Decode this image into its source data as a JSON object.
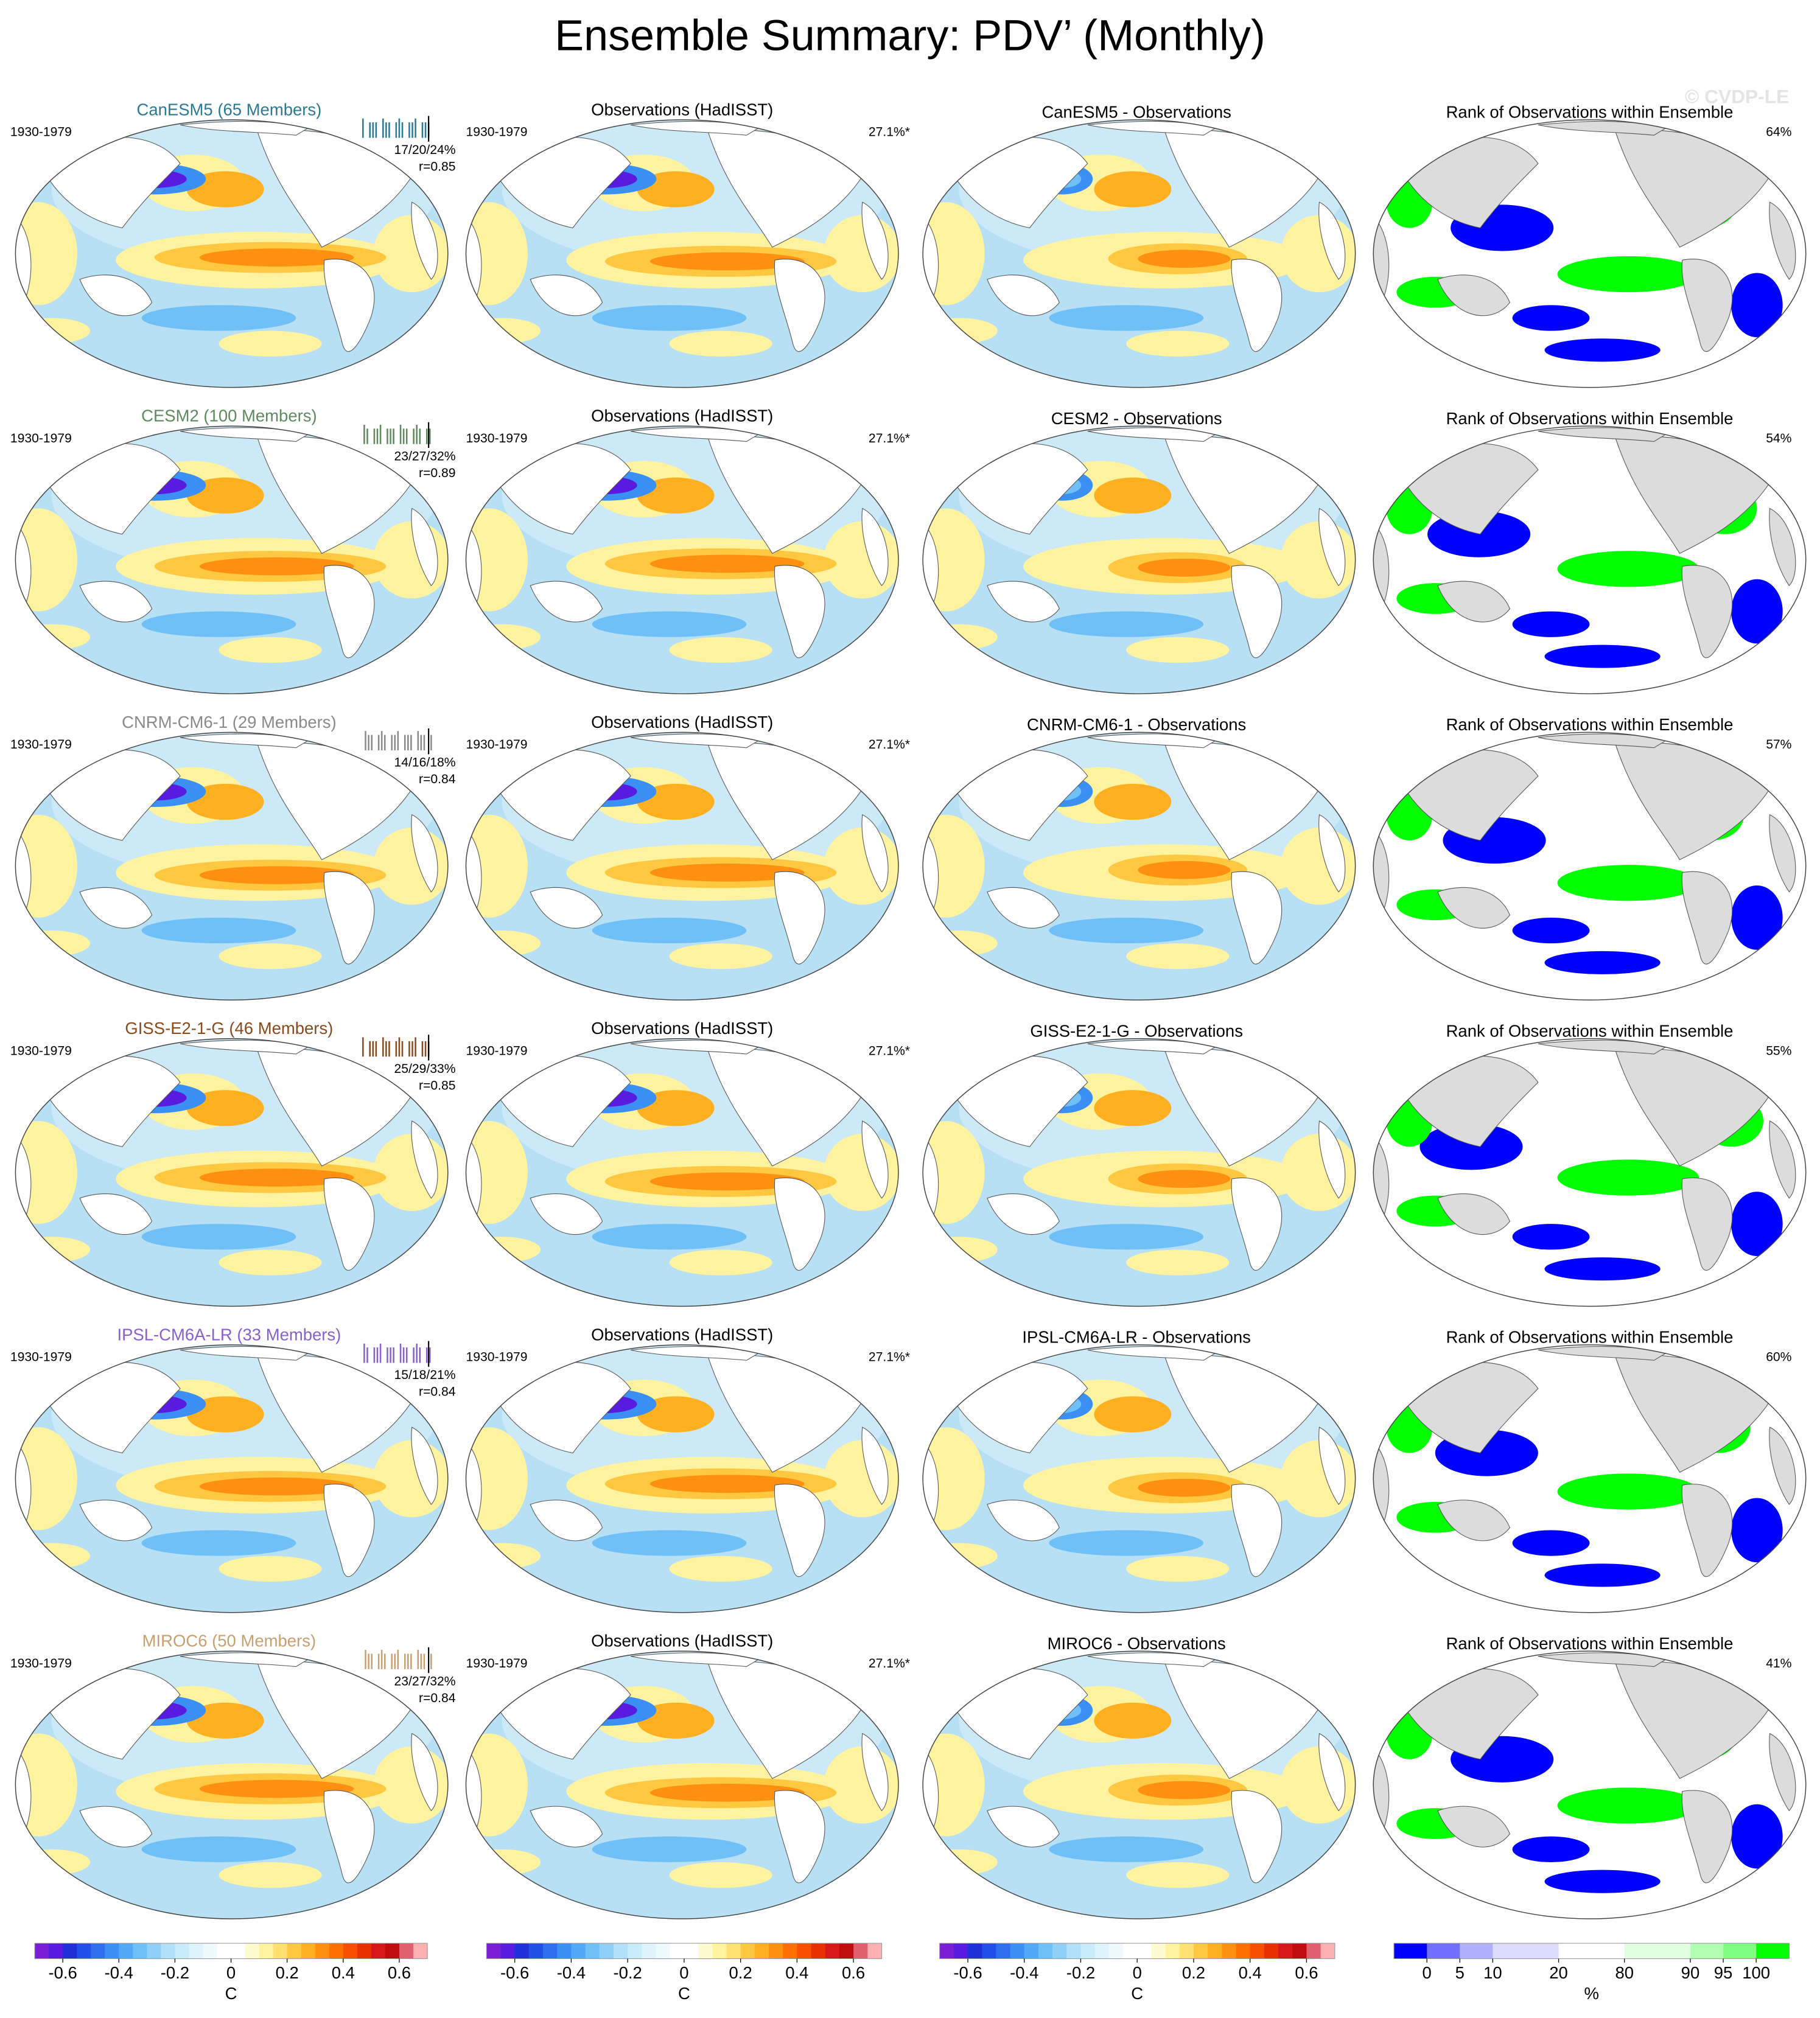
{
  "title": "Ensemble Summary: PDV’ (Monthly)",
  "watermark": "© CVDP-LE",
  "rows": [
    {
      "model_title": "CanESM5 (65 Members)",
      "color": "#2a7a96",
      "period": "1930-1979",
      "stats": "17/20/24%",
      "r": "r=0.85",
      "obs_title": "Observations (HadISST)",
      "obs_period": "1930-1979",
      "obs_pct": "27.1%*",
      "diff_title": "CanESM5 - Observations",
      "rank_title": "Rank of Observations within Ensemble",
      "rank_pct": "64%"
    },
    {
      "model_title": "CESM2 (100 Members)",
      "color": "#5e8a5e",
      "period": "1930-1979",
      "stats": "23/27/32%",
      "r": "r=0.89",
      "obs_title": "Observations (HadISST)",
      "obs_period": "1930-1979",
      "obs_pct": "27.1%*",
      "diff_title": "CESM2 - Observations",
      "rank_title": "Rank of Observations within Ensemble",
      "rank_pct": "54%"
    },
    {
      "model_title": "CNRM-CM6-1 (29 Members)",
      "color": "#8a8a8a",
      "period": "1930-1979",
      "stats": "14/16/18%",
      "r": "r=0.84",
      "obs_title": "Observations (HadISST)",
      "obs_period": "1930-1979",
      "obs_pct": "27.1%*",
      "diff_title": "CNRM-CM6-1 - Observations",
      "rank_title": "Rank of Observations within Ensemble",
      "rank_pct": "57%"
    },
    {
      "model_title": "GISS-E2-1-G (46 Members)",
      "color": "#8b4a1e",
      "period": "1930-1979",
      "stats": "25/29/33%",
      "r": "r=0.85",
      "obs_title": "Observations (HadISST)",
      "obs_period": "1930-1979",
      "obs_pct": "27.1%*",
      "diff_title": "GISS-E2-1-G - Observations",
      "rank_title": "Rank of Observations within Ensemble",
      "rank_pct": "55%"
    },
    {
      "model_title": "IPSL-CM6A-LR (33 Members)",
      "color": "#8a5fd0",
      "period": "1930-1979",
      "stats": "15/18/21%",
      "r": "r=0.84",
      "obs_title": "Observations (HadISST)",
      "obs_period": "1930-1979",
      "obs_pct": "27.1%*",
      "diff_title": "IPSL-CM6A-LR - Observations",
      "rank_title": "Rank of Observations within Ensemble",
      "rank_pct": "60%"
    },
    {
      "model_title": "MIROC6 (50 Members)",
      "color": "#c8a070",
      "period": "1930-1979",
      "stats": "23/27/32%",
      "r": "r=0.84",
      "obs_title": "Observations (HadISST)",
      "obs_period": "1930-1979",
      "obs_pct": "27.1%*",
      "diff_title": "MIROC6 - Observations",
      "rank_title": "Rank of Observations within Ensemble",
      "rank_pct": "41%"
    }
  ],
  "colorbars": [
    {
      "unit": "C",
      "lim": [
        -0.7,
        0.7
      ],
      "ticks": [
        -0.6,
        -0.4,
        -0.2,
        0,
        0.2,
        0.4,
        0.6
      ],
      "colors": [
        "#7a1fd6",
        "#5a1be0",
        "#2030d8",
        "#2050e8",
        "#3070f0",
        "#3a90f5",
        "#50aaf8",
        "#70c0f8",
        "#90d0f8",
        "#b0e0fa",
        "#c8ecfa",
        "#ddf4fc",
        "#eefafe",
        "#ffffff",
        "#ffffff",
        "#fffbd0",
        "#fff3a0",
        "#ffe070",
        "#ffc840",
        "#ffb020",
        "#ff9010",
        "#ff7000",
        "#f85000",
        "#e83000",
        "#d81818",
        "#c00c0c",
        "#e06070",
        "#ffb0b0"
      ]
    },
    {
      "unit": "C",
      "lim": [
        -0.7,
        0.7
      ],
      "ticks": [
        -0.6,
        -0.4,
        -0.2,
        0,
        0.2,
        0.4,
        0.6
      ],
      "colors": [
        "#7a1fd6",
        "#5a1be0",
        "#2030d8",
        "#2050e8",
        "#3070f0",
        "#3a90f5",
        "#50aaf8",
        "#70c0f8",
        "#90d0f8",
        "#b0e0fa",
        "#c8ecfa",
        "#ddf4fc",
        "#eefafe",
        "#ffffff",
        "#ffffff",
        "#fffbd0",
        "#fff3a0",
        "#ffe070",
        "#ffc840",
        "#ffb020",
        "#ff9010",
        "#ff7000",
        "#f85000",
        "#e83000",
        "#d81818",
        "#c00c0c",
        "#e06070",
        "#ffb0b0"
      ]
    },
    {
      "unit": "C",
      "lim": [
        -0.7,
        0.7
      ],
      "ticks": [
        -0.6,
        -0.4,
        -0.2,
        0,
        0.2,
        0.4,
        0.6
      ],
      "colors": [
        "#7a1fd6",
        "#5a1be0",
        "#2030d8",
        "#2050e8",
        "#3070f0",
        "#3a90f5",
        "#50aaf8",
        "#70c0f8",
        "#90d0f8",
        "#b0e0fa",
        "#c8ecfa",
        "#ddf4fc",
        "#eefafe",
        "#ffffff",
        "#ffffff",
        "#fffbd0",
        "#fff3a0",
        "#ffe070",
        "#ffc840",
        "#ffb020",
        "#ff9010",
        "#ff7000",
        "#f85000",
        "#e83000",
        "#d81818",
        "#c00c0c",
        "#e06070",
        "#ffb0b0"
      ]
    },
    {
      "unit": "%",
      "ticks": [
        0,
        5,
        10,
        20,
        80,
        90,
        95,
        100
      ],
      "colors": [
        "#0000ff",
        "#7070ff",
        "#b0b0ff",
        "#dcdcff",
        "#dcdcff",
        "#ffffff",
        "#ffffff",
        "#e0ffe0",
        "#e0ffe0",
        "#b0ffb0",
        "#80ff80",
        "#00ff00"
      ]
    }
  ]
}
